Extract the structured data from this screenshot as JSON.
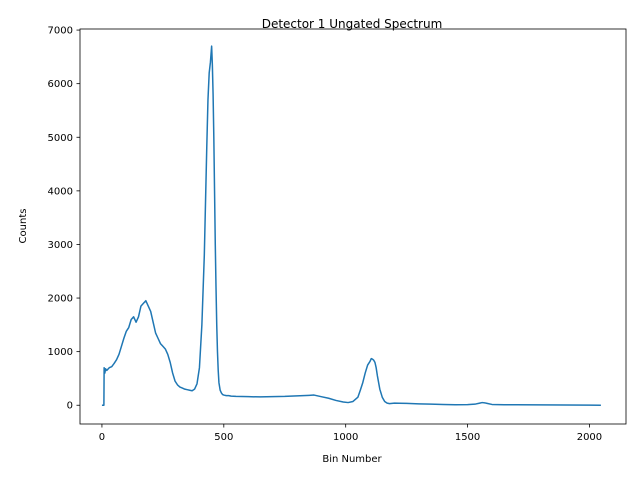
{
  "chart_data": {
    "type": "line",
    "title": "Detector 1 Ungated Spectrum",
    "xlabel": "Bin Number",
    "ylabel": "Counts",
    "xlim": [
      -90,
      2150
    ],
    "ylim": [
      -350,
      7020
    ],
    "xticks": [
      0,
      500,
      1000,
      1500,
      2000
    ],
    "yticks": [
      0,
      1000,
      2000,
      3000,
      4000,
      5000,
      6000,
      7000
    ],
    "grid": false,
    "line_color": "#1f77b4",
    "series": [
      {
        "x": [
          0,
          8,
          9,
          12,
          15,
          20,
          30,
          40,
          50,
          60,
          70,
          80,
          90,
          100,
          110,
          120,
          130,
          140,
          150,
          160,
          170,
          180,
          190,
          200,
          210,
          220,
          230,
          240,
          250,
          260,
          270,
          280,
          290,
          300,
          310,
          320,
          330,
          340,
          350,
          360,
          370,
          380,
          390,
          400,
          410,
          420,
          425,
          430,
          435,
          440,
          445,
          450,
          453,
          456,
          459,
          462,
          465,
          468,
          471,
          474,
          477,
          480,
          485,
          490,
          495,
          500,
          510,
          520,
          530,
          550,
          600,
          650,
          700,
          750,
          800,
          850,
          870,
          900,
          930,
          960,
          990,
          1010,
          1030,
          1050,
          1060,
          1070,
          1080,
          1090,
          1100,
          1105,
          1110,
          1115,
          1120,
          1125,
          1130,
          1140,
          1150,
          1160,
          1170,
          1180,
          1190,
          1200,
          1220,
          1250,
          1300,
          1350,
          1400,
          1450,
          1500,
          1530,
          1550,
          1560,
          1570,
          1580,
          1600,
          1650,
          1700,
          1800,
          1900,
          2000,
          2047
        ],
        "y": [
          0,
          0,
          700,
          600,
          680,
          650,
          700,
          720,
          780,
          850,
          950,
          1100,
          1250,
          1380,
          1450,
          1600,
          1650,
          1550,
          1650,
          1850,
          1900,
          1950,
          1850,
          1750,
          1550,
          1350,
          1250,
          1150,
          1100,
          1050,
          950,
          800,
          600,
          450,
          380,
          340,
          320,
          300,
          290,
          280,
          270,
          300,
          400,
          700,
          1500,
          2800,
          3800,
          4800,
          5700,
          6200,
          6400,
          6700,
          6350,
          5800,
          5000,
          4000,
          3000,
          2200,
          1500,
          1000,
          650,
          420,
          280,
          230,
          200,
          190,
          180,
          180,
          170,
          165,
          160,
          155,
          160,
          165,
          175,
          185,
          190,
          160,
          130,
          90,
          60,
          50,
          70,
          150,
          280,
          420,
          600,
          750,
          820,
          870,
          860,
          840,
          800,
          700,
          550,
          300,
          150,
          70,
          40,
          30,
          35,
          40,
          38,
          35,
          25,
          20,
          15,
          10,
          12,
          20,
          40,
          50,
          45,
          35,
          15,
          10,
          8,
          6,
          4,
          2,
          1
        ]
      }
    ]
  }
}
